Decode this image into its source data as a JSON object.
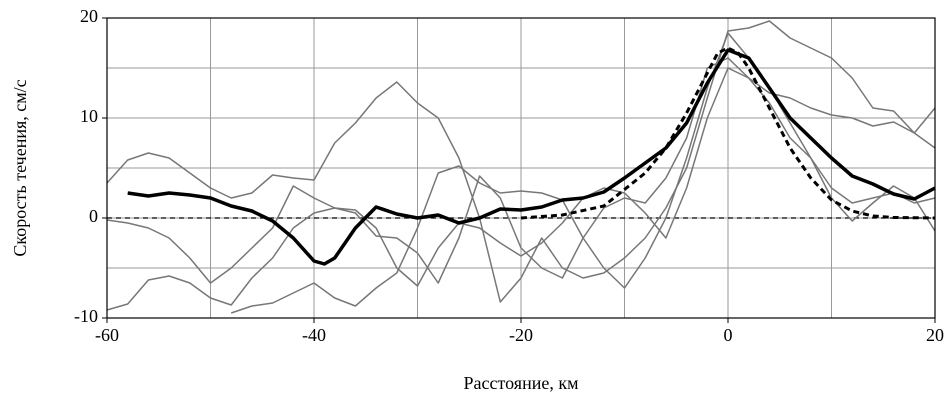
{
  "chart_data": {
    "type": "line",
    "xlabel": "Расстояние, км",
    "ylabel": "Скорость течения, см/с",
    "xlim": [
      -60,
      20
    ],
    "ylim": [
      -10,
      20
    ],
    "xticks": [
      -60,
      -40,
      -20,
      0,
      20
    ],
    "yticks": [
      -10,
      0,
      10,
      20
    ],
    "xgrid": [
      -60,
      -50,
      -40,
      -30,
      -20,
      -10,
      0,
      10,
      20
    ],
    "ygrid": [
      -10,
      -5,
      0,
      5,
      10,
      15,
      20
    ],
    "grid": true,
    "reference_line": {
      "value": 0,
      "color": "#000",
      "dash": true
    },
    "series": [
      {
        "color": "#777777",
        "width": 1.5,
        "dash": false,
        "x": [
          -60,
          -58,
          -56,
          -54,
          -52,
          -50,
          -48,
          -46,
          -44,
          -42,
          -40,
          -38,
          -36,
          -34,
          -32,
          -30,
          -28,
          -26,
          -24,
          -22,
          -20,
          -18,
          -16,
          -14,
          -12,
          -10,
          -8,
          -6,
          -4,
          -2,
          0,
          2,
          4,
          6,
          8,
          10,
          12,
          14,
          16,
          18,
          20
        ],
        "values": [
          3.5,
          5.8,
          6.5,
          6,
          4.5,
          3,
          2,
          2.5,
          4.3,
          4,
          3.8,
          7.5,
          9.5,
          12,
          13.6,
          11.5,
          10,
          6,
          0,
          -8.4,
          -6,
          -2,
          -5,
          -6,
          -5.5,
          -4,
          -2,
          1,
          5,
          12,
          18.7,
          19,
          19.7,
          18,
          17,
          16,
          14,
          11,
          10.7,
          8.5,
          11
        ]
      },
      {
        "color": "#777777",
        "width": 1.5,
        "dash": false,
        "x": [
          -60,
          -58,
          -56,
          -54,
          -52,
          -50,
          -48,
          -46,
          -44,
          -42,
          -40,
          -38,
          -36,
          -34,
          -32,
          -30,
          -28,
          -26,
          -24,
          -22,
          -20,
          -18,
          -16,
          -14,
          -12,
          -10,
          -8,
          -6,
          -4,
          -2,
          0,
          2,
          4,
          6,
          8,
          10,
          12,
          14,
          16,
          18,
          20
        ],
        "values": [
          -0.2,
          -0.5,
          -1,
          -2,
          -4,
          -6.5,
          -5,
          -3,
          -1,
          3.2,
          2,
          1,
          0.5,
          -1.8,
          -2,
          -3.5,
          -6.5,
          -2,
          4.2,
          2,
          -3,
          -5,
          -6,
          -2,
          1,
          2,
          1.5,
          4,
          8,
          15,
          16,
          14,
          12.5,
          12,
          11,
          10.3,
          10,
          9.2,
          9.6,
          8.5,
          7
        ]
      },
      {
        "color": "#777777",
        "width": 1.5,
        "dash": false,
        "x": [
          -60,
          -58,
          -56,
          -54,
          -52,
          -50,
          -48,
          -46,
          -44,
          -42,
          -40,
          -38,
          -36,
          -34,
          -32,
          -30,
          -28,
          -26,
          -24,
          -22,
          -20,
          -18,
          -16,
          -14,
          -12,
          -10,
          -8,
          -6,
          -4,
          -2,
          0,
          2,
          4,
          6,
          8,
          10,
          12,
          14,
          16,
          18,
          20
        ],
        "values": [
          -9.2,
          -8.6,
          -6.2,
          -5.8,
          -6.5,
          -8,
          -8.7,
          -6,
          -4,
          -1,
          0.5,
          1,
          0.8,
          -1,
          -5,
          -6.8,
          -3,
          -0.5,
          -1,
          -2.5,
          -3.8,
          -2.5,
          -0.5,
          2,
          3,
          2.5,
          0.5,
          -2,
          3,
          10,
          15,
          14,
          11.5,
          8,
          6,
          2,
          -0.3,
          1.5,
          3.2,
          2,
          -1.3
        ]
      },
      {
        "color": "#777777",
        "width": 1.5,
        "dash": false,
        "x": [
          -48,
          -46,
          -44,
          -42,
          -40,
          -38,
          -36,
          -34,
          -32,
          -30,
          -28,
          -26,
          -24,
          -22,
          -20,
          -18,
          -16,
          -14,
          -12,
          -10,
          -8,
          -6,
          -4,
          -2,
          0,
          2,
          4,
          6,
          8,
          10,
          12,
          14,
          16,
          18,
          20
        ],
        "values": [
          -9.5,
          -8.8,
          -8.5,
          -7.5,
          -6.5,
          -8,
          -8.8,
          -7,
          -5.5,
          -1,
          4.5,
          5.2,
          3.5,
          2.5,
          2.7,
          2.5,
          1.8,
          -2,
          -5,
          -7,
          -4,
          0,
          6,
          13,
          18.5,
          16,
          13,
          9.5,
          6,
          3,
          1.5,
          2,
          2.5,
          1.5,
          2
        ]
      },
      {
        "color": "#000000",
        "width": 3,
        "dash": true,
        "x": [
          -20,
          -16,
          -12,
          -8,
          -6,
          -4,
          -2,
          -1,
          0,
          1,
          2,
          4,
          6,
          8,
          10,
          12,
          14,
          16,
          20
        ],
        "values": [
          0,
          0.3,
          1.2,
          4.5,
          7,
          10.5,
          14.5,
          16.5,
          17,
          16.5,
          15,
          11,
          7,
          4,
          1.8,
          0.7,
          0.2,
          0.05,
          0
        ]
      },
      {
        "color": "#000000",
        "width": 3.5,
        "dash": false,
        "x": [
          -58,
          -56,
          -54,
          -52,
          -50,
          -48,
          -46,
          -44,
          -42,
          -40,
          -39,
          -38,
          -36,
          -34,
          -32,
          -30,
          -28,
          -26,
          -24,
          -22,
          -20,
          -18,
          -16,
          -14,
          -12,
          -10,
          -8,
          -6,
          -4,
          -2,
          0,
          2,
          4,
          6,
          8,
          10,
          12,
          14,
          16,
          18,
          20
        ],
        "values": [
          2.5,
          2.2,
          2.5,
          2.3,
          2,
          1.2,
          0.7,
          -0.3,
          -2,
          -4.3,
          -4.6,
          -4,
          -1,
          1.1,
          0.4,
          0,
          0.3,
          -0.5,
          0,
          0.9,
          0.8,
          1.1,
          1.8,
          2,
          2.6,
          4,
          5.5,
          7,
          9.5,
          13.5,
          16.8,
          16,
          13,
          10,
          8,
          6,
          4.2,
          3.4,
          2.4,
          1.9,
          3
        ]
      }
    ]
  }
}
